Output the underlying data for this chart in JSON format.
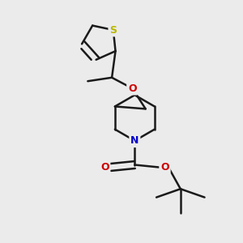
{
  "background_color": "#ebebeb",
  "bond_color": "#1a1a1a",
  "sulfur_color": "#b8b800",
  "nitrogen_color": "#0000cc",
  "oxygen_color": "#cc0000",
  "line_width": 1.8,
  "figsize": [
    3.0,
    3.0
  ],
  "dpi": 100,
  "xlim": [
    0,
    10
  ],
  "ylim": [
    0,
    10
  ]
}
